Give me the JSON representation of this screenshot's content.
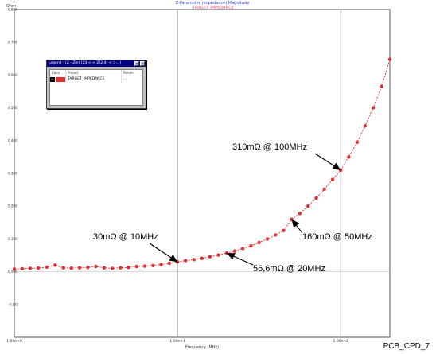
{
  "chart_data": {
    "type": "line",
    "title": "Z-Parameter (Impedance) Magnitude",
    "subtitle": "TARGET_IMPEDANCE",
    "xlabel": "Frequency (MHz)",
    "ylabel": "Ohm",
    "x_scale": "log",
    "xlim": [
      1,
      200
    ],
    "ylim": [
      -0.2,
      0.8
    ],
    "x_ticks": [
      {
        "value": 1,
        "label": "1.00e+0"
      },
      {
        "value": 10,
        "label": "1.00e+1"
      },
      {
        "value": 100,
        "label": "1.00e+2"
      }
    ],
    "y_ticks": [
      {
        "value": 0.8,
        "label": "0.800"
      },
      {
        "value": 0.7,
        "label": "0.700"
      },
      {
        "value": 0.6,
        "label": "0.600"
      },
      {
        "value": 0.5,
        "label": "0.500"
      },
      {
        "value": 0.4,
        "label": "0.400"
      },
      {
        "value": 0.3,
        "label": "0.300"
      },
      {
        "value": 0.2,
        "label": "0.200"
      },
      {
        "value": 0.1,
        "label": "0.100"
      },
      {
        "value": 0.0,
        "label": "0.000"
      },
      {
        "value": -0.1,
        "label": "-0.100"
      }
    ],
    "grid": "vertical decades",
    "series": [
      {
        "name": "TARGET_IMPEDANCE",
        "color": "#e03030",
        "x": [
          1,
          1.12,
          1.25,
          1.4,
          1.58,
          1.78,
          2.0,
          2.24,
          2.51,
          2.82,
          3.16,
          3.55,
          3.98,
          4.47,
          5.01,
          5.62,
          6.31,
          7.08,
          7.94,
          8.91,
          10,
          11.2,
          12.6,
          14.1,
          15.8,
          17.8,
          20,
          22.4,
          25.1,
          28.2,
          31.6,
          35.5,
          39.8,
          44.7,
          50.1,
          56.2,
          63.1,
          70.8,
          79.4,
          89.1,
          100,
          112,
          126,
          141,
          158,
          178,
          200
        ],
        "values": [
          0.008,
          0.009,
          0.01,
          0.011,
          0.014,
          0.02,
          0.012,
          0.011,
          0.012,
          0.013,
          0.016,
          0.012,
          0.01,
          0.012,
          0.013,
          0.016,
          0.017,
          0.019,
          0.022,
          0.026,
          0.03,
          0.034,
          0.037,
          0.041,
          0.046,
          0.051,
          0.057,
          0.063,
          0.071,
          0.079,
          0.089,
          0.1,
          0.112,
          0.126,
          0.16,
          0.178,
          0.2,
          0.225,
          0.252,
          0.281,
          0.31,
          0.35,
          0.395,
          0.445,
          0.5,
          0.565,
          0.648
        ]
      }
    ],
    "annotations": [
      {
        "text": "310mΩ @ 100MHz",
        "x": 100,
        "y": 0.31
      },
      {
        "text": "160mΩ @ 50MHz",
        "x": 50,
        "y": 0.16
      },
      {
        "text": "30mΩ @ 10MHz",
        "x": 10,
        "y": 0.03
      },
      {
        "text": "56,6mΩ @ 20MHz",
        "x": 20,
        "y": 0.057
      }
    ]
  },
  "legend_window": {
    "title": "Legend - (Z - Zin) [Z4 <-> Z(2,4) <->...]",
    "columns": [
      "Color",
      "Project",
      "Param"
    ],
    "rows": [
      {
        "checked": "✓",
        "color": "#e03030",
        "project": "TARGET_IMPEDANCE",
        "param": "..."
      }
    ]
  },
  "footer": "PCB_CPD_7"
}
